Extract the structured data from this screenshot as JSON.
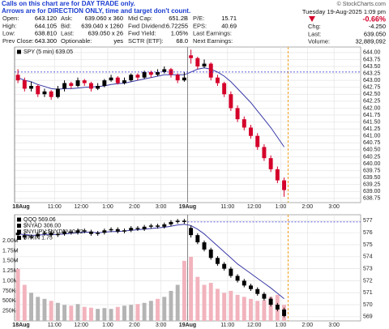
{
  "annotation": [
    "Calls on this chart are for DAY TRADE only.",
    "Arrows are for DIRECTION ONLY, time and target don't count."
  ],
  "watermark": "© StockCharts.com",
  "header": {
    "rows": [
      [
        [
          "Open:",
          "643.120"
        ],
        [
          "Ask:",
          "639.060 x 360"
        ],
        [
          "Mid Cap:",
          "651.2B"
        ],
        [
          "P/E:",
          "15.71"
        ]
      ],
      [
        [
          "High:",
          "644.105"
        ],
        [
          "Bid:",
          "639.040 x 1260"
        ],
        [
          "Fwd Dividend:",
          "6.72255"
        ],
        [
          "EPS:",
          "40.69"
        ]
      ],
      [
        [
          "Low:",
          "638.810"
        ],
        [
          "Last:",
          "639.050 x 26"
        ],
        [
          "Fwd Yield:",
          "1.05%"
        ],
        [
          "Last Earnings:"
        ]
      ],
      [
        [
          "Prev Close:",
          {
            "value": 643.3,
            "label": "643.300"
          }
        ],
        [
          "Optionable:",
          "yes"
        ],
        [
          "SCTR (ETF):",
          "68.0"
        ],
        [
          "Next Earnings:"
        ]
      ]
    ],
    "date": "Tuesday 19-Aug-2025 1:09 pm",
    "change_pct": "-0.66%",
    "side": [
      [
        "Chg:",
        "-4.250"
      ],
      [
        "Last:",
        "639.050"
      ],
      [
        "Volume:",
        "32,889,092"
      ]
    ]
  },
  "chart_data": [
    {
      "type": "candlestick",
      "legend": [
        "SPY (5 min) 639.05"
      ],
      "x": [
        0.125,
        0.375,
        0.625,
        0.875,
        1.125,
        1.375,
        1.625,
        1.875,
        2.125,
        2.375,
        2.625,
        2.875,
        3.125,
        3.375,
        3.625,
        3.875,
        4.125,
        4.375,
        4.625,
        4.875,
        5.125,
        5.375,
        5.625,
        5.875,
        6.125,
        6.375,
        6.625,
        6.875,
        7.125,
        7.375,
        7.625,
        7.875,
        8.125,
        8.375,
        8.625,
        8.875,
        9.125,
        9.375,
        9.625,
        9.875,
        10.125
      ],
      "open": [
        643.2,
        643.0,
        642.7,
        642.8,
        642.5,
        642.6,
        642.4,
        642.7,
        642.9,
        642.8,
        643.0,
        642.9,
        642.7,
        642.8,
        643.0,
        643.1,
        642.9,
        643.0,
        643.2,
        643.1,
        643.3,
        643.2,
        643.3,
        643.4,
        643.2,
        643.0,
        643.9,
        643.8,
        643.5,
        643.6,
        643.1,
        642.9,
        642.5,
        642.0,
        641.6,
        641.3,
        641.0,
        640.6,
        640.2,
        639.8,
        639.4
      ],
      "high": [
        643.4,
        643.1,
        642.95,
        642.85,
        642.7,
        642.65,
        642.8,
        643.0,
        642.95,
        643.1,
        643.05,
        642.95,
        642.9,
        643.05,
        643.2,
        643.15,
        643.1,
        643.25,
        643.25,
        643.35,
        643.35,
        643.4,
        643.5,
        643.45,
        643.25,
        643.3,
        644.105,
        643.85,
        643.75,
        643.65,
        643.2,
        642.95,
        642.6,
        642.1,
        641.7,
        641.4,
        641.1,
        640.7,
        640.3,
        639.9,
        639.5
      ],
      "low": [
        642.9,
        642.6,
        642.6,
        642.4,
        642.4,
        642.3,
        642.35,
        642.6,
        642.7,
        642.75,
        642.8,
        642.6,
        642.65,
        642.75,
        642.95,
        642.85,
        642.85,
        642.95,
        643.0,
        643.05,
        643.1,
        643.15,
        643.25,
        643.1,
        642.9,
        642.95,
        643.6,
        643.4,
        643.45,
        643.0,
        642.8,
        642.4,
        641.9,
        641.5,
        641.2,
        640.9,
        640.5,
        640.1,
        639.7,
        639.3,
        638.81
      ],
      "close": [
        643.0,
        642.7,
        642.8,
        642.5,
        642.6,
        642.4,
        642.7,
        642.9,
        642.8,
        643.0,
        642.9,
        642.7,
        642.8,
        643.0,
        643.1,
        642.9,
        643.0,
        643.2,
        643.1,
        643.3,
        643.2,
        643.3,
        643.4,
        643.2,
        643.0,
        643.1,
        643.8,
        643.5,
        643.6,
        643.1,
        642.9,
        642.5,
        642.0,
        641.6,
        641.3,
        641.0,
        640.6,
        640.2,
        639.8,
        639.4,
        639.05
      ],
      "up_color": "#000000",
      "down_color": "#d4002a",
      "ma": {
        "color": "#3a3aa8",
        "values": [
          643.1,
          643.0,
          642.95,
          642.85,
          642.78,
          642.7,
          642.68,
          642.7,
          642.7,
          642.72,
          642.75,
          642.76,
          642.78,
          642.8,
          642.85,
          642.88,
          642.9,
          642.95,
          643.0,
          643.05,
          643.1,
          643.15,
          643.2,
          643.2,
          643.2,
          643.2,
          643.3,
          643.4,
          643.45,
          643.4,
          643.3,
          643.15,
          642.95,
          642.7,
          642.45,
          642.2,
          641.9,
          641.6,
          641.3,
          640.95,
          640.6
        ]
      },
      "xlim": [
        0,
        13
      ],
      "xticks": [
        {
          "value": 0,
          "label": "18Aug"
        },
        {
          "value": 1.5,
          "label": "11:00"
        },
        {
          "value": 2.5,
          "label": "12:00"
        },
        {
          "value": 3.5,
          "label": "1:00"
        },
        {
          "value": 4.5,
          "label": "2:00"
        },
        {
          "value": 5.5,
          "label": "3:00"
        },
        {
          "value": 6.5,
          "label": "19Aug"
        },
        {
          "value": 8,
          "label": "11:00"
        },
        {
          "value": 9,
          "label": "12:00"
        },
        {
          "value": 10,
          "label": "1:00"
        },
        {
          "value": 11,
          "label": "2:00"
        },
        {
          "value": 12,
          "label": "3:00"
        }
      ],
      "ylim": [
        638.6,
        644.2
      ],
      "yticks": [
        {
          "value": 638.75,
          "label": "638.75"
        },
        {
          "value": 639,
          "label": "639.00"
        },
        {
          "value": 639.25,
          "label": "639.25"
        },
        {
          "value": 639.5,
          "label": "639.50"
        },
        {
          "value": 639.75,
          "label": "639.75"
        },
        {
          "value": 640,
          "label": "640.00"
        },
        {
          "value": 640.25,
          "label": "640.25"
        },
        {
          "value": 640.5,
          "label": "640.50"
        },
        {
          "value": 640.75,
          "label": "640.75"
        },
        {
          "value": 641,
          "label": "641.00"
        },
        {
          "value": 641.25,
          "label": "641.25"
        },
        {
          "value": 641.5,
          "label": "641.50"
        },
        {
          "value": 641.75,
          "label": "641.75"
        },
        {
          "value": 642,
          "label": "642.00"
        },
        {
          "value": 642.25,
          "label": "642.25"
        },
        {
          "value": 642.5,
          "label": "642.50"
        },
        {
          "value": 642.75,
          "label": "642.75"
        },
        {
          "value": 643,
          "label": "643.00"
        },
        {
          "value": 643.25,
          "label": "643.25"
        },
        {
          "value": 643.5,
          "label": "643.50"
        },
        {
          "value": 643.75,
          "label": "643.75"
        },
        {
          "value": 644,
          "label": "644.00"
        }
      ],
      "grid": true
    },
    {
      "type": "candlestick",
      "legend": [
        "QQQ 569.06",
        "$NYAD 306.00",
        "$NYUPV:$NYDNV 0.72",
        "$TRIN 1.75"
      ],
      "x": [
        0.125,
        0.375,
        0.625,
        0.875,
        1.125,
        1.375,
        1.625,
        1.875,
        2.125,
        2.375,
        2.625,
        2.875,
        3.125,
        3.375,
        3.625,
        3.875,
        4.125,
        4.375,
        4.625,
        4.875,
        5.125,
        5.375,
        5.625,
        5.875,
        6.125,
        6.375,
        6.625,
        6.875,
        7.125,
        7.375,
        7.625,
        7.875,
        8.125,
        8.375,
        8.625,
        8.875,
        9.125,
        9.375,
        9.625,
        9.875,
        10.125
      ],
      "open": [
        576.0,
        575.8,
        575.6,
        575.7,
        575.9,
        576.0,
        575.8,
        575.9,
        576.1,
        576.0,
        576.2,
        576.1,
        575.9,
        576.0,
        576.2,
        576.3,
        576.1,
        576.2,
        576.4,
        576.3,
        576.5,
        576.6,
        576.5,
        576.7,
        576.9,
        577.0,
        576.4,
        575.8,
        575.2,
        574.6,
        573.9,
        573.4,
        573.0,
        572.4,
        572.0,
        571.6,
        571.3,
        570.9,
        570.5,
        570.0,
        569.6
      ],
      "high": [
        576.15,
        575.95,
        575.85,
        576.05,
        576.15,
        576.15,
        576.05,
        576.25,
        576.25,
        576.35,
        576.35,
        576.25,
        576.15,
        576.35,
        576.45,
        576.45,
        576.35,
        576.55,
        576.55,
        576.65,
        576.75,
        576.75,
        576.85,
        577.05,
        577.15,
        577.15,
        576.6,
        575.95,
        575.35,
        574.75,
        574.05,
        573.55,
        573.15,
        572.55,
        572.15,
        571.75,
        571.45,
        571.05,
        570.65,
        570.15,
        569.75
      ],
      "low": [
        575.65,
        575.45,
        575.45,
        575.55,
        575.75,
        575.65,
        575.65,
        575.75,
        575.85,
        575.85,
        575.95,
        575.75,
        575.75,
        575.85,
        576.05,
        575.95,
        575.95,
        576.05,
        576.15,
        576.15,
        576.35,
        576.35,
        576.35,
        576.55,
        576.75,
        576.75,
        575.6,
        575.05,
        574.45,
        573.75,
        573.25,
        572.85,
        572.25,
        571.85,
        571.45,
        571.15,
        570.75,
        570.35,
        569.85,
        569.45,
        568.95
      ],
      "close": [
        575.8,
        575.6,
        575.7,
        575.9,
        576.0,
        575.8,
        575.9,
        576.1,
        576.0,
        576.2,
        576.1,
        575.9,
        576.0,
        576.2,
        576.3,
        576.1,
        576.2,
        576.4,
        576.3,
        576.5,
        576.6,
        576.5,
        576.7,
        576.9,
        577.0,
        576.9,
        575.8,
        575.2,
        574.6,
        573.9,
        573.4,
        573.0,
        572.4,
        572.0,
        571.6,
        571.3,
        570.9,
        570.5,
        570.0,
        569.6,
        569.06
      ],
      "up_color": "#000000",
      "down_color": "#000000",
      "ma": {
        "color": "#3a3aa8",
        "values": [
          575.9,
          575.85,
          575.8,
          575.8,
          575.85,
          575.85,
          575.85,
          575.9,
          575.95,
          576.0,
          576.05,
          576.05,
          576.0,
          576.05,
          576.1,
          576.1,
          576.15,
          576.2,
          576.25,
          576.3,
          576.35,
          576.4,
          576.45,
          576.55,
          576.65,
          576.7,
          576.6,
          576.3,
          575.9,
          575.4,
          574.9,
          574.4,
          573.9,
          573.4,
          573.0,
          572.6,
          572.2,
          571.8,
          571.4,
          570.95,
          570.5
        ]
      },
      "volume": {
        "up_color": "#b4b4b4",
        "down_color": "#f2b3bd",
        "values": [
          1300000,
          900000,
          700000,
          600000,
          550000,
          500000,
          450000,
          400000,
          380000,
          420000,
          350000,
          330000,
          300000,
          320000,
          300000,
          350000,
          380000,
          400000,
          420000,
          450000,
          500000,
          550000,
          600000,
          750000,
          900000,
          1500000,
          1600000,
          1100000,
          900000,
          950000,
          800000,
          700000,
          750000,
          650000,
          600000,
          550000,
          500000,
          520000,
          600000,
          650000,
          400000
        ],
        "ylim": [
          0,
          2650000
        ],
        "yticks": [
          {
            "value": 250000,
            "label": "250K"
          },
          {
            "value": 500000,
            "label": "500K"
          },
          {
            "value": 750000,
            "label": "750K"
          },
          {
            "value": 1000000,
            "label": "1.00M"
          },
          {
            "value": 1250000,
            "label": "1.25M"
          },
          {
            "value": 1500000,
            "label": "1.50M"
          },
          {
            "value": 1750000,
            "label": "1.75M"
          },
          {
            "value": 2000000,
            "label": "2.00M"
          }
        ]
      },
      "xlim": [
        0,
        13
      ],
      "xticks": [
        {
          "value": 0,
          "label": "18Aug"
        },
        {
          "value": 1.5,
          "label": "11:00"
        },
        {
          "value": 2.5,
          "label": "12:00"
        },
        {
          "value": 3.5,
          "label": "1:00"
        },
        {
          "value": 4.5,
          "label": "2:00"
        },
        {
          "value": 5.5,
          "label": "3:00"
        },
        {
          "value": 6.5,
          "label": "19Aug"
        },
        {
          "value": 8,
          "label": "11:00"
        },
        {
          "value": 9,
          "label": "12:00"
        },
        {
          "value": 10,
          "label": "1:00"
        },
        {
          "value": 11,
          "label": "2:00"
        },
        {
          "value": 12,
          "label": "3:00"
        }
      ],
      "ylim": [
        568.65,
        577.5
      ],
      "yticks": [
        569,
        570,
        571,
        572,
        573,
        574,
        575,
        576,
        577
      ],
      "grid": true
    }
  ]
}
